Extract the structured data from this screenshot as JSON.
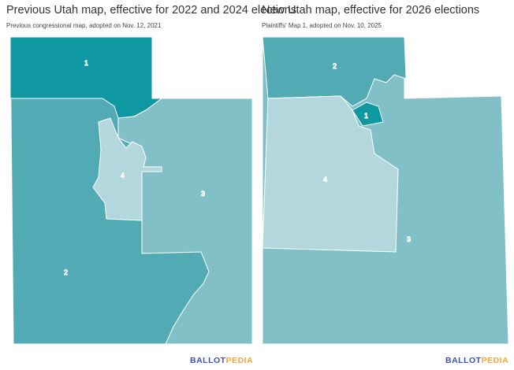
{
  "colors": {
    "d1": "#0f97a2",
    "d2": "#52aab5",
    "d3": "#82c0c8",
    "d4": "#b2d8dd",
    "border": "#ffffff"
  },
  "left_map": {
    "title": "Previous Utah map, effective for 2022 and 2024 elections",
    "subtitle": "Previous congressional map, adopted on Nov. 12, 2021",
    "districts": [
      {
        "label": "1"
      },
      {
        "label": "2"
      },
      {
        "label": "3"
      },
      {
        "label": "4"
      }
    ]
  },
  "right_map": {
    "title": "New Utah map, effective for 2026 elections",
    "subtitle": "Plaintiffs' Map 1, adopted on Nov. 10, 2025",
    "districts": [
      {
        "label": "1"
      },
      {
        "label": "2"
      },
      {
        "label": "3"
      },
      {
        "label": "4"
      }
    ]
  },
  "logo": {
    "part1": "BALLOT",
    "part2": "PEDIA"
  }
}
